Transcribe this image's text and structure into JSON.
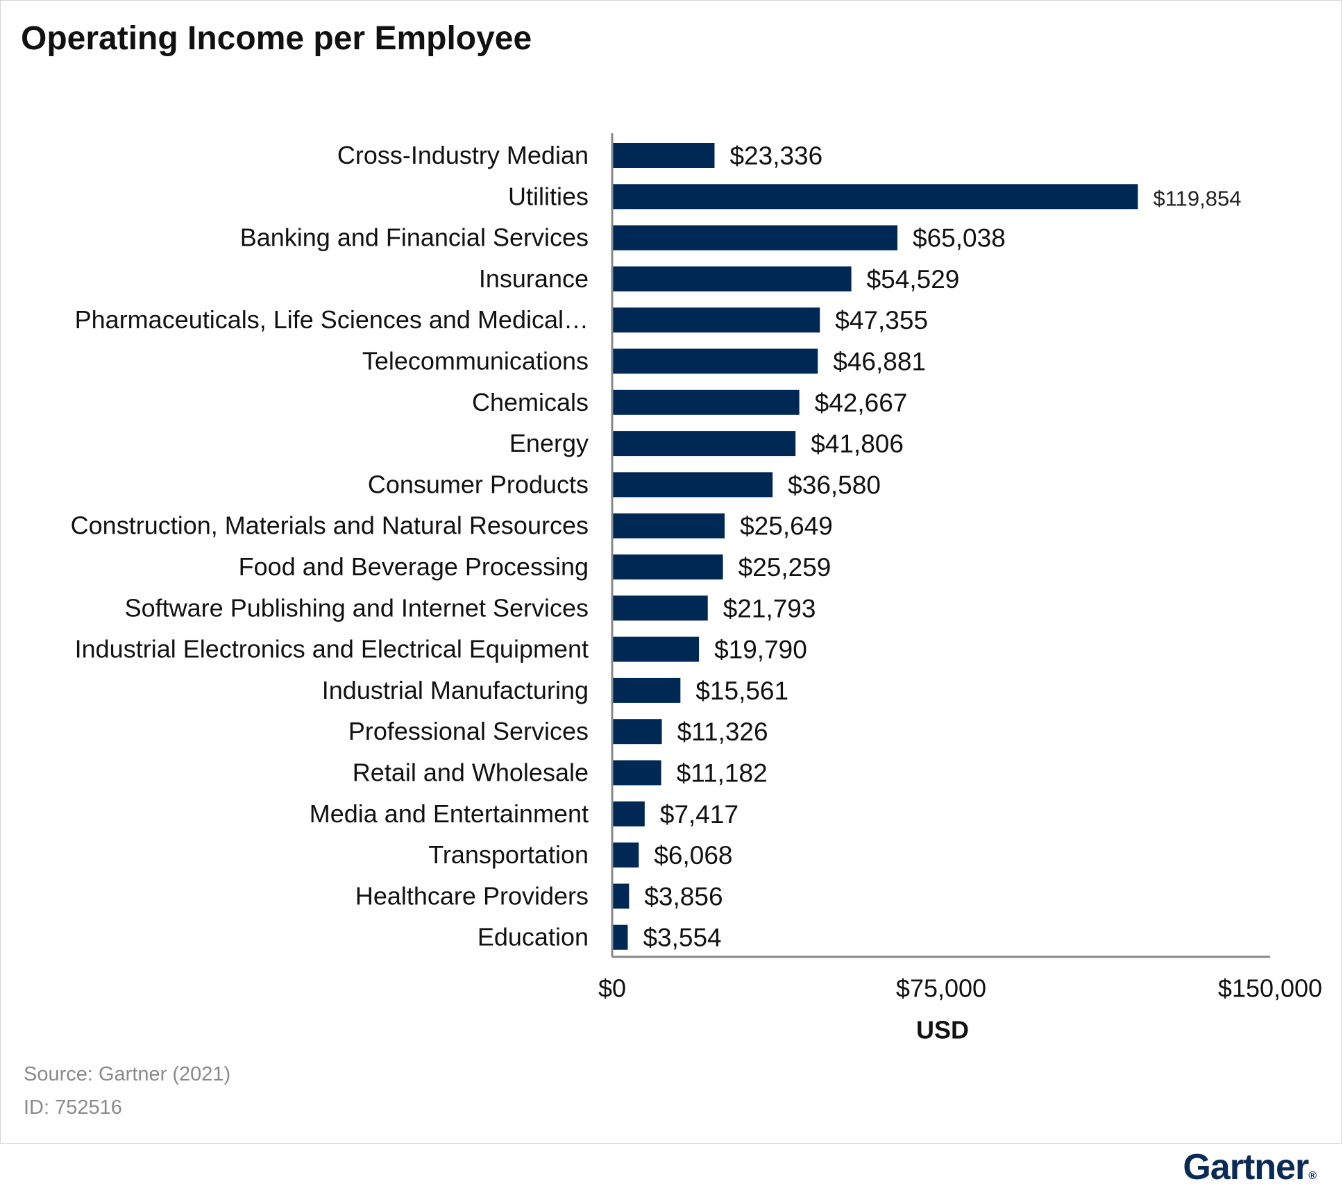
{
  "chart_data": {
    "type": "bar",
    "orientation": "horizontal",
    "title": "Operating Income per Employee",
    "xlabel": "USD",
    "ylabel": "",
    "xlim": [
      0,
      150000
    ],
    "x_ticks": [
      "$0",
      "$75,000",
      "$150,000"
    ],
    "x_tick_values": [
      0,
      75000,
      150000
    ],
    "bar_color": "#002855",
    "grid": false,
    "legend": "none",
    "categories": [
      "Cross-Industry Median",
      "Utilities",
      "Banking and Financial Services",
      "Insurance",
      "Pharmaceuticals, Life Sciences and Medical…",
      "Telecommunications",
      "Chemicals",
      "Energy",
      "Consumer Products",
      "Construction, Materials and Natural Resources",
      "Food and Beverage Processing",
      "Software Publishing and Internet Services",
      "Industrial Electronics and Electrical Equipment",
      "Industrial Manufacturing",
      "Professional Services",
      "Retail and Wholesale",
      "Media and Entertainment",
      "Transportation",
      "Healthcare Providers",
      "Education"
    ],
    "values": [
      23336,
      119854,
      65038,
      54529,
      47355,
      46881,
      42667,
      41806,
      36580,
      25649,
      25259,
      21793,
      19790,
      15561,
      11326,
      11182,
      7417,
      6068,
      3856,
      3554
    ],
    "data_labels": [
      "$23,336",
      "$119,854",
      "$65,038",
      "$54,529",
      "$47,355",
      "$46,881",
      "$42,667",
      "$41,806",
      "$36,580",
      "$25,649",
      "$25,259",
      "$21,793",
      "$19,790",
      "$15,561",
      "$11,326",
      "$11,182",
      "$7,417",
      "$6,068",
      "$3,856",
      "$3,554"
    ]
  },
  "footer": {
    "source": "Source: Gartner (2021)",
    "id": "ID: 752516"
  },
  "brand": {
    "name": "Gartner",
    "mark": "®",
    "color": "#0b2a55"
  }
}
